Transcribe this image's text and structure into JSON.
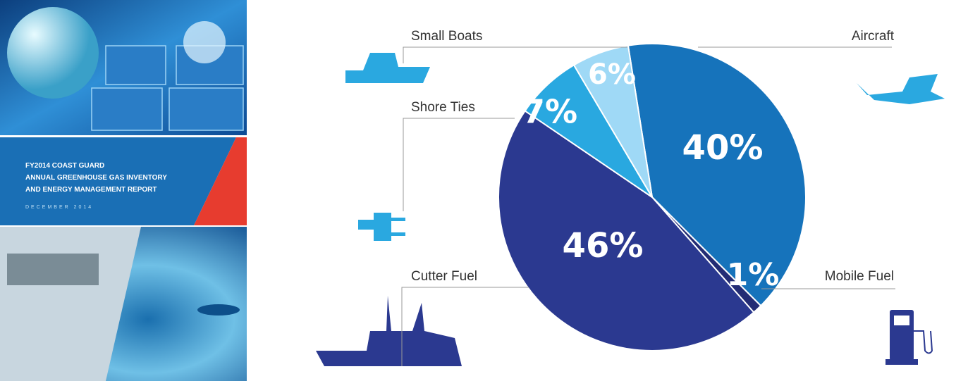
{
  "cover": {
    "title_lines": [
      "FY2014 COAST GUARD",
      "ANNUAL GREENHOUSE GAS INVENTORY",
      "AND ENERGY MANAGEMENT REPORT"
    ],
    "date": "DECEMBER 2014"
  },
  "chart_data": {
    "type": "pie",
    "categories": [
      "Aircraft",
      "Mobile Fuel",
      "Cutter Fuel",
      "Shore Ties",
      "Small Boats"
    ],
    "values": [
      40,
      1,
      46,
      7,
      6
    ],
    "value_labels": [
      "40%",
      "1%",
      "46%",
      "7%",
      "6%"
    ],
    "colors": [
      "#1673bb",
      "#232c74",
      "#2b3990",
      "#29a8e0",
      "#9fd9f6"
    ]
  }
}
